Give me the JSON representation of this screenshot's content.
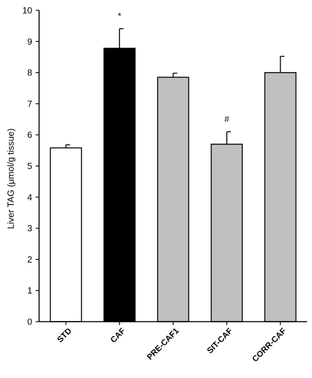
{
  "chart_data": {
    "type": "bar",
    "title": "",
    "xlabel": "",
    "ylabel": "Liver TAG (μmol/g tissue)",
    "ylim": [
      0,
      10
    ],
    "yticks": [
      0,
      1,
      2,
      3,
      4,
      5,
      6,
      7,
      8,
      9,
      10
    ],
    "categories": [
      "STD",
      "CAF",
      "PRE-CAF1",
      "SIT-CAF",
      "CORR-CAF"
    ],
    "values": [
      5.58,
      8.78,
      7.85,
      5.7,
      8.0
    ],
    "errors": [
      0.1,
      0.63,
      0.13,
      0.4,
      0.52
    ],
    "colors": [
      "#ffffff",
      "#000000",
      "#c0c0c0",
      "#c0c0c0",
      "#c0c0c0"
    ],
    "annotations": [
      "",
      "*",
      "",
      "#",
      ""
    ],
    "grid": false,
    "legend": "none"
  }
}
